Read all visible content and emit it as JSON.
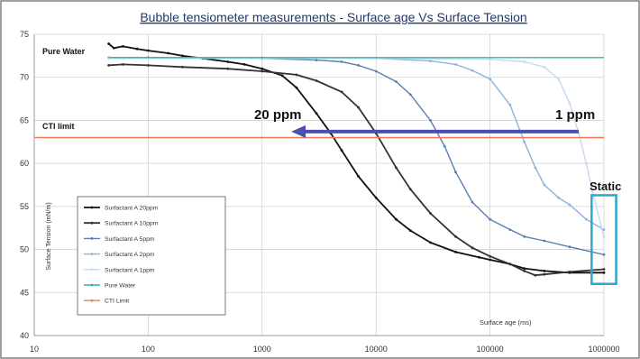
{
  "chart_data": {
    "type": "line",
    "title": "Bubble tensiometer measurements - Surface age Vs Surface Tension",
    "xlabel": "Surface age (ms)",
    "ylabel": "Surface Tension (mN/m)",
    "x_scale": "log",
    "xlim": [
      10,
      1000000
    ],
    "ylim": [
      40,
      75
    ],
    "x_ticks": [
      10,
      100,
      1000,
      10000,
      100000,
      1000000
    ],
    "x_tick_labels": [
      "10",
      "100",
      "1000",
      "10000",
      "100000",
      "1000000"
    ],
    "y_ticks": [
      40,
      45,
      50,
      55,
      60,
      65,
      70,
      75
    ],
    "grid": true,
    "legend_position": "bottom-left",
    "series": [
      {
        "name": "Surfactant A 20ppm",
        "color": "#111111",
        "points": [
          [
            45,
            73.9
          ],
          [
            50,
            73.4
          ],
          [
            60,
            73.6
          ],
          [
            80,
            73.3
          ],
          [
            100,
            73.1
          ],
          [
            150,
            72.8
          ],
          [
            200,
            72.5
          ],
          [
            300,
            72.2
          ],
          [
            500,
            71.8
          ],
          [
            700,
            71.5
          ],
          [
            1000,
            71.0
          ],
          [
            1500,
            70.2
          ],
          [
            2000,
            68.8
          ],
          [
            3000,
            65.8
          ],
          [
            4000,
            63.5
          ],
          [
            5000,
            61.5
          ],
          [
            7000,
            58.5
          ],
          [
            10000,
            56.0
          ],
          [
            15000,
            53.5
          ],
          [
            20000,
            52.2
          ],
          [
            30000,
            50.8
          ],
          [
            50000,
            49.7
          ],
          [
            80000,
            49.1
          ],
          [
            100000,
            48.8
          ],
          [
            150000,
            48.3
          ],
          [
            200000,
            47.8
          ],
          [
            300000,
            47.5
          ],
          [
            500000,
            47.3
          ],
          [
            1000000,
            47.3
          ]
        ]
      },
      {
        "name": "Surfactant A 10ppm",
        "color": "#333333",
        "points": [
          [
            45,
            71.4
          ],
          [
            60,
            71.5
          ],
          [
            100,
            71.4
          ],
          [
            200,
            71.2
          ],
          [
            500,
            71.0
          ],
          [
            1000,
            70.7
          ],
          [
            2000,
            70.3
          ],
          [
            3000,
            69.6
          ],
          [
            5000,
            68.3
          ],
          [
            7000,
            66.5
          ],
          [
            10000,
            63.5
          ],
          [
            15000,
            59.5
          ],
          [
            20000,
            57.0
          ],
          [
            30000,
            54.2
          ],
          [
            50000,
            51.5
          ],
          [
            70000,
            50.2
          ],
          [
            100000,
            49.2
          ],
          [
            150000,
            48.3
          ],
          [
            200000,
            47.5
          ],
          [
            250000,
            47.0
          ],
          [
            300000,
            47.1
          ],
          [
            500000,
            47.4
          ],
          [
            1000000,
            47.7
          ]
        ]
      },
      {
        "name": "Surfactant A 5ppm",
        "color": "#5a7fb0",
        "points": [
          [
            45,
            72.3
          ],
          [
            100,
            72.3
          ],
          [
            1000,
            72.2
          ],
          [
            3000,
            72.0
          ],
          [
            5000,
            71.8
          ],
          [
            7000,
            71.4
          ],
          [
            10000,
            70.7
          ],
          [
            15000,
            69.5
          ],
          [
            20000,
            68.0
          ],
          [
            30000,
            65.0
          ],
          [
            40000,
            62.0
          ],
          [
            50000,
            59.0
          ],
          [
            70000,
            55.5
          ],
          [
            100000,
            53.5
          ],
          [
            150000,
            52.3
          ],
          [
            200000,
            51.5
          ],
          [
            300000,
            51.0
          ],
          [
            500000,
            50.3
          ],
          [
            1000000,
            49.4
          ]
        ]
      },
      {
        "name": "Surfactant A 2ppm",
        "color": "#8db3dc",
        "points": [
          [
            45,
            72.3
          ],
          [
            1000,
            72.3
          ],
          [
            10000,
            72.2
          ],
          [
            30000,
            71.9
          ],
          [
            50000,
            71.5
          ],
          [
            70000,
            70.8
          ],
          [
            100000,
            69.8
          ],
          [
            150000,
            66.8
          ],
          [
            200000,
            62.5
          ],
          [
            250000,
            59.5
          ],
          [
            300000,
            57.5
          ],
          [
            400000,
            56.0
          ],
          [
            500000,
            55.2
          ],
          [
            700000,
            53.5
          ],
          [
            1000000,
            52.3
          ]
        ]
      },
      {
        "name": "Surfactant A 1ppm",
        "color": "#c3d9ef",
        "points": [
          [
            45,
            72.2
          ],
          [
            10000,
            72.2
          ],
          [
            100000,
            72.1
          ],
          [
            200000,
            71.8
          ],
          [
            300000,
            71.2
          ],
          [
            400000,
            69.8
          ],
          [
            500000,
            67.0
          ],
          [
            600000,
            63.5
          ],
          [
            700000,
            60.0
          ],
          [
            800000,
            56.5
          ],
          [
            1000000,
            51.5
          ]
        ]
      },
      {
        "name": "Pure Water",
        "color": "#35b3a6",
        "points": [
          [
            45,
            72.3
          ],
          [
            1000000,
            72.3
          ]
        ]
      },
      {
        "name": "CTI Limit",
        "color": "#f07b50",
        "points": [
          [
            10,
            63
          ],
          [
            1000000,
            63
          ]
        ]
      }
    ],
    "annotations": {
      "pure_water_label": "Pure Water",
      "cti_limit_label": "CTI limit",
      "arrow_left_label": "20 ppm",
      "arrow_right_label": "1 ppm",
      "static_label": "Static"
    },
    "arrow": {
      "x_from": 600000,
      "x_to": 1800,
      "y": 63.7
    },
    "static_box": {
      "x_from": 780000,
      "x_to": 1280000,
      "y_from": 46,
      "y_to": 56.3
    }
  },
  "colors": {
    "title": "#1f3a6e",
    "arrow": "#4a4fb0",
    "static_box": "#2aa8c8",
    "grid": "#d0d0d0",
    "frame": "#7f7f7f"
  }
}
